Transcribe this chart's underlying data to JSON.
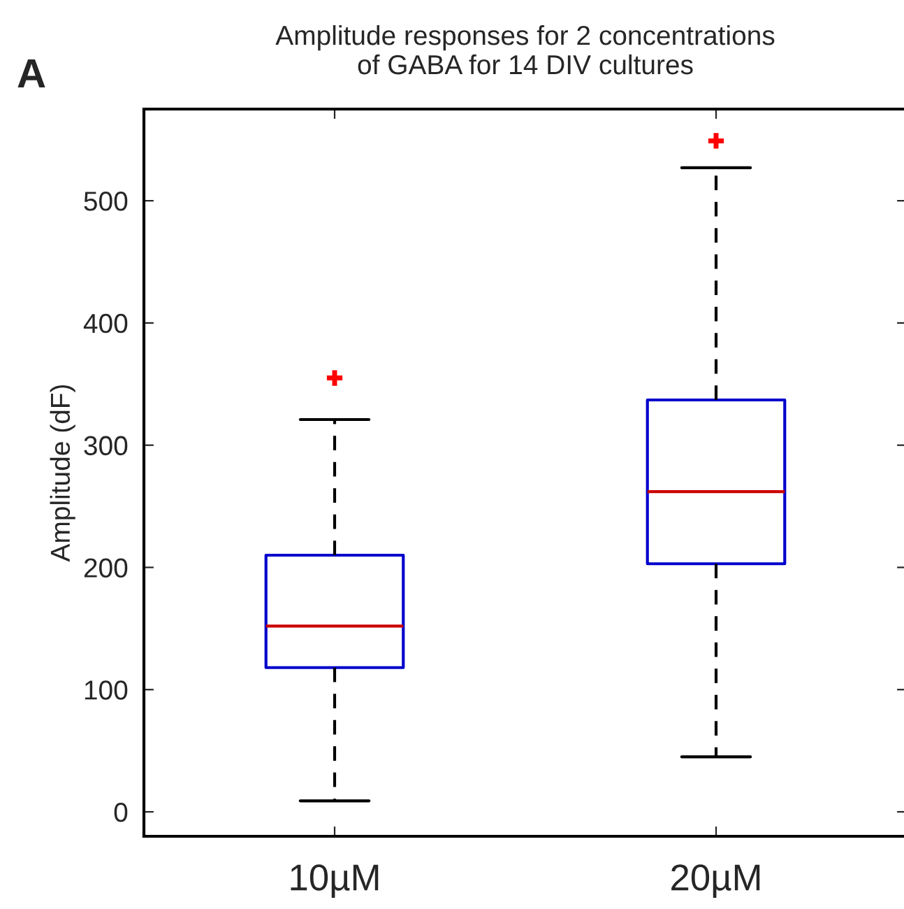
{
  "chart_data": {
    "type": "box",
    "title": "Amplitude responses for 2 concentrations\nof GABA for 14 DIV cultures",
    "ylabel": "Amplitude (dF)",
    "annotations": [
      "A"
    ],
    "categories": [
      "10µM",
      "20µM"
    ],
    "boxes": [
      {
        "low": 9,
        "q1": 118,
        "median": 152,
        "q3": 210,
        "high": 321,
        "outliers": [
          355
        ]
      },
      {
        "low": 45,
        "q1": 203,
        "median": 262,
        "q3": 337,
        "high": 527,
        "outliers": [
          549
        ]
      }
    ],
    "ylim": [
      -20,
      575
    ],
    "yticks": [
      0,
      100,
      200,
      300,
      400,
      500
    ],
    "grid": false,
    "legend": false
  }
}
